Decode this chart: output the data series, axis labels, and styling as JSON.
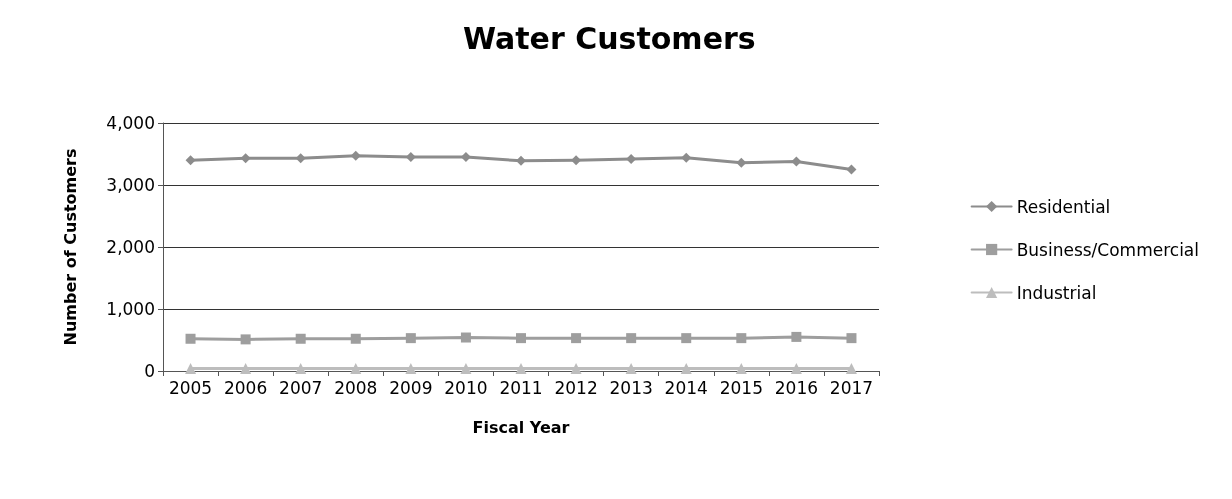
{
  "chart_data": {
    "type": "line",
    "title": "Water Customers",
    "xlabel": "Fiscal Year",
    "ylabel": "Number of Customers",
    "categories": [
      "2005",
      "2006",
      "2007",
      "2008",
      "2009",
      "2010",
      "2011",
      "2012",
      "2013",
      "2014",
      "2015",
      "2016",
      "2017"
    ],
    "series": [
      {
        "name": "Residential",
        "color": "#8c8c8c",
        "marker": "diamond",
        "values": [
          3400,
          3430,
          3430,
          3470,
          3450,
          3450,
          3390,
          3400,
          3420,
          3440,
          3360,
          3380,
          3250
        ]
      },
      {
        "name": "Business/Commercial",
        "color": "#9e9e9e",
        "marker": "square",
        "values": [
          520,
          510,
          520,
          520,
          530,
          540,
          530,
          530,
          530,
          530,
          530,
          550,
          530
        ]
      },
      {
        "name": "Industrial",
        "color": "#bdbdbd",
        "marker": "triangle",
        "values": [
          40,
          40,
          40,
          40,
          40,
          40,
          40,
          40,
          40,
          40,
          40,
          40,
          40
        ]
      }
    ],
    "ylim": [
      0,
      4000
    ],
    "yticks": [
      0,
      {
        "value": 1000,
        "label": "1,000"
      },
      {
        "value": 2000,
        "label": "2,000"
      },
      {
        "value": 3000,
        "label": "3,000"
      },
      {
        "value": 4000,
        "label": "4,000"
      }
    ],
    "grid": "y",
    "legend": "right",
    "line_style": "solid"
  }
}
